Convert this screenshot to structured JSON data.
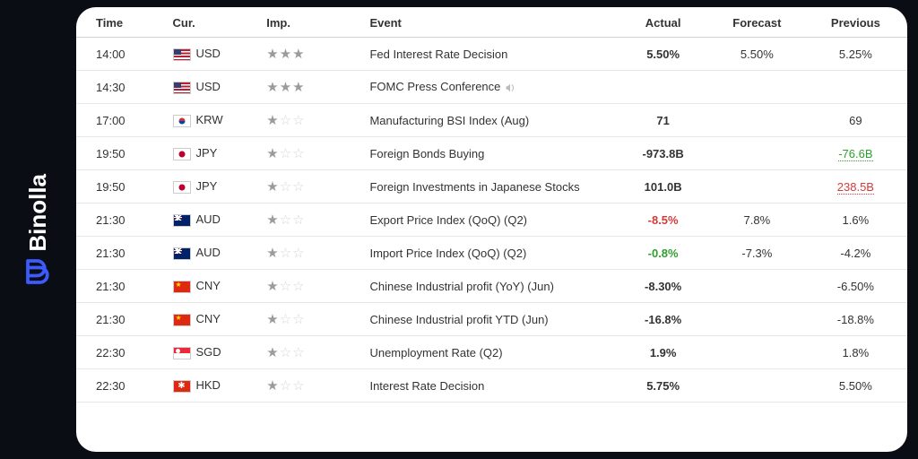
{
  "brand": {
    "name": "Binolla",
    "logo_color": "#3b5bff"
  },
  "table": {
    "headers": {
      "time": "Time",
      "cur": "Cur.",
      "imp": "Imp.",
      "event": "Event",
      "actual": "Actual",
      "forecast": "Forecast",
      "previous": "Previous"
    },
    "rows": [
      {
        "time": "14:00",
        "currency": "USD",
        "importance": 3,
        "event": "Fed Interest Rate Decision",
        "audio": false,
        "actual": {
          "text": "5.50%",
          "color": "normal"
        },
        "forecast": "5.50%",
        "previous": {
          "text": "5.25%",
          "color": "normal"
        }
      },
      {
        "time": "14:30",
        "currency": "USD",
        "importance": 3,
        "event": "FOMC Press Conference",
        "audio": true,
        "actual": {
          "text": "",
          "color": "normal"
        },
        "forecast": "",
        "previous": {
          "text": "",
          "color": "normal"
        }
      },
      {
        "time": "17:00",
        "currency": "KRW",
        "importance": 1,
        "event": "Manufacturing BSI Index (Aug)",
        "audio": false,
        "actual": {
          "text": "71",
          "color": "normal"
        },
        "forecast": "",
        "previous": {
          "text": "69",
          "color": "normal"
        }
      },
      {
        "time": "19:50",
        "currency": "JPY",
        "importance": 1,
        "event": "Foreign Bonds Buying",
        "audio": false,
        "actual": {
          "text": "-973.8B",
          "color": "normal"
        },
        "forecast": "",
        "previous": {
          "text": "-76.6B",
          "color": "green",
          "underline": true
        }
      },
      {
        "time": "19:50",
        "currency": "JPY",
        "importance": 1,
        "event": "Foreign Investments in Japanese Stocks",
        "audio": false,
        "actual": {
          "text": "101.0B",
          "color": "normal"
        },
        "forecast": "",
        "previous": {
          "text": "238.5B",
          "color": "red",
          "underline": true
        }
      },
      {
        "time": "21:30",
        "currency": "AUD",
        "importance": 1,
        "event": "Export Price Index (QoQ) (Q2)",
        "audio": false,
        "actual": {
          "text": "-8.5%",
          "color": "red"
        },
        "forecast": "7.8%",
        "previous": {
          "text": "1.6%",
          "color": "normal"
        }
      },
      {
        "time": "21:30",
        "currency": "AUD",
        "importance": 1,
        "event": "Import Price Index (QoQ) (Q2)",
        "audio": false,
        "actual": {
          "text": "-0.8%",
          "color": "green"
        },
        "forecast": "-7.3%",
        "previous": {
          "text": "-4.2%",
          "color": "normal"
        }
      },
      {
        "time": "21:30",
        "currency": "CNY",
        "importance": 1,
        "event": "Chinese Industrial profit (YoY) (Jun)",
        "audio": false,
        "actual": {
          "text": "-8.30%",
          "color": "normal"
        },
        "forecast": "",
        "previous": {
          "text": "-6.50%",
          "color": "normal"
        }
      },
      {
        "time": "21:30",
        "currency": "CNY",
        "importance": 1,
        "event": "Chinese Industrial profit YTD (Jun)",
        "audio": false,
        "actual": {
          "text": "-16.8%",
          "color": "normal"
        },
        "forecast": "",
        "previous": {
          "text": "-18.8%",
          "color": "normal"
        }
      },
      {
        "time": "22:30",
        "currency": "SGD",
        "importance": 1,
        "event": "Unemployment Rate (Q2)",
        "audio": false,
        "actual": {
          "text": "1.9%",
          "color": "normal"
        },
        "forecast": "",
        "previous": {
          "text": "1.8%",
          "color": "normal"
        }
      },
      {
        "time": "22:30",
        "currency": "HKD",
        "importance": 1,
        "event": "Interest Rate Decision",
        "audio": false,
        "actual": {
          "text": "5.75%",
          "color": "normal"
        },
        "forecast": "",
        "previous": {
          "text": "5.50%",
          "color": "normal"
        }
      }
    ]
  },
  "style": {
    "bg": "#0a0e14",
    "panel_bg": "#ffffff",
    "panel_radius": 22,
    "row_border": "#e7e7e7",
    "header_border": "#d0d0d0",
    "text": "#333333",
    "green": "#2e9e2e",
    "red": "#d23b3b",
    "star_filled": "#9b9b9b",
    "star_empty": "#d6d6d6",
    "font_size": 13
  }
}
